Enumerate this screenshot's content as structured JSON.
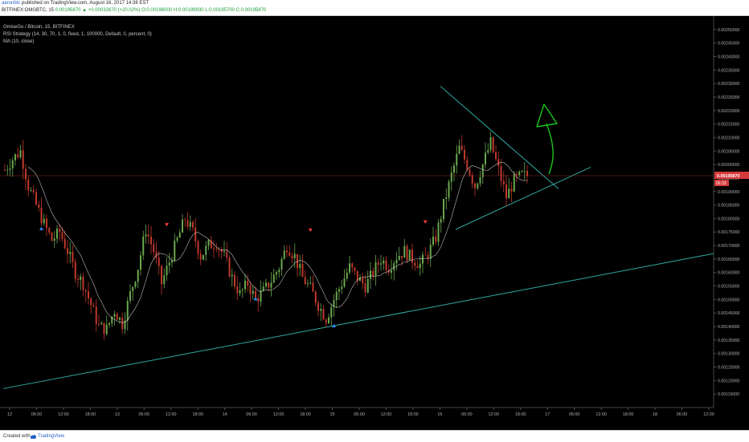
{
  "header": {
    "user": "aaronbtc",
    "published": "published on TradingView.com, August 16, 2017 14:38 EST",
    "symbol_line": "BITFINEX:OMGBTC, 15",
    "last": "0.00195870",
    "change": "+0.00032670 (+20.02%)",
    "open": "O:0.00196000",
    "high": "H:0.00199930",
    "low": "L:0.00195700",
    "close": "C:0.00195870"
  },
  "legend": {
    "title": "OmiseGo / Bitcoin, 15, BITFINEX",
    "rsi": "RSI Strategy (14, 30, 70, 1, 0, fixed, 1, 100000, Default, 0, percent, 0)",
    "ma": "MA (10, close)"
  },
  "footer": {
    "created_with": "Created with",
    "brand": "TradingView"
  },
  "colors": {
    "background": "#000000",
    "up": "#6aa84f",
    "down": "#c0392b",
    "ma": "#e8e8e8",
    "trendline": "#2fa8a0",
    "annotation": "#19c419",
    "price_line": "#c0392b",
    "price_label_bg": "#d63a3a",
    "signal_buy": "#2a8cff",
    "signal_sell": "#ff3b3b"
  },
  "chart_data": {
    "type": "candlestick",
    "y_axis": {
      "ticks": [
        "0.00250000",
        "0.00245000",
        "0.00240000",
        "0.00235000",
        "0.00230000",
        "0.00225000",
        "0.00220000",
        "0.00215000",
        "0.00210000",
        "0.00205000",
        "0.00200000",
        "0.00195000",
        "0.00190000",
        "0.00185000",
        "0.00180000",
        "0.00175000",
        "0.00170000",
        "0.00165000",
        "0.00160000",
        "0.00155000",
        "0.00150000",
        "0.00145000",
        "0.00140000",
        "0.00135000",
        "0.00130000",
        "0.00125000",
        "0.00120000",
        "0.00115000"
      ],
      "ylim": [
        0.0011,
        0.00255
      ]
    },
    "x_axis": {
      "ticks": [
        "12",
        "06:00",
        "12:00",
        "18:00",
        "13",
        "06:00",
        "12:00",
        "18:00",
        "14",
        "06:00",
        "12:00",
        "18:00",
        "15",
        "06:00",
        "12:00",
        "18:00",
        "16",
        "06:00",
        "12:00",
        "18:00",
        "17",
        "06:00",
        "12:00",
        "18:00",
        "18",
        "06:00",
        "12:00"
      ]
    },
    "last_price": 0.0019587,
    "last_price_label": "0.00195870",
    "sub_label": "06:33",
    "price_path_points": [
      [
        0,
        0.00198
      ],
      [
        3,
        0.00202
      ],
      [
        6,
        0.00205
      ],
      [
        9,
        0.00192
      ],
      [
        12,
        0.00185
      ],
      [
        15,
        0.00178
      ],
      [
        18,
        0.00172
      ],
      [
        21,
        0.00175
      ],
      [
        24,
        0.00168
      ],
      [
        27,
        0.0016
      ],
      [
        30,
        0.00156
      ],
      [
        33,
        0.00148
      ],
      [
        36,
        0.0014
      ],
      [
        39,
        0.00139
      ],
      [
        42,
        0.00146
      ],
      [
        45,
        0.00141
      ],
      [
        48,
        0.00152
      ],
      [
        51,
        0.00162
      ],
      [
        54,
        0.00176
      ],
      [
        57,
        0.00168
      ],
      [
        60,
        0.00156
      ],
      [
        63,
        0.00164
      ],
      [
        66,
        0.00172
      ],
      [
        69,
        0.0018
      ],
      [
        72,
        0.00175
      ],
      [
        75,
        0.00166
      ],
      [
        78,
        0.0017
      ],
      [
        81,
        0.00171
      ],
      [
        84,
        0.00166
      ],
      [
        87,
        0.00158
      ],
      [
        90,
        0.00152
      ],
      [
        93,
        0.00156
      ],
      [
        96,
        0.0015
      ],
      [
        99,
        0.00153
      ],
      [
        102,
        0.00157
      ],
      [
        105,
        0.00162
      ],
      [
        108,
        0.0017
      ],
      [
        111,
        0.00166
      ],
      [
        114,
        0.00158
      ],
      [
        117,
        0.00154
      ],
      [
        120,
        0.00148
      ],
      [
        123,
        0.00143
      ],
      [
        126,
        0.0015
      ],
      [
        129,
        0.00156
      ],
      [
        132,
        0.00162
      ],
      [
        135,
        0.00158
      ],
      [
        138,
        0.00155
      ],
      [
        141,
        0.0016
      ],
      [
        144,
        0.00165
      ],
      [
        147,
        0.00162
      ],
      [
        150,
        0.00166
      ],
      [
        153,
        0.00168
      ],
      [
        156,
        0.00165
      ],
      [
        159,
        0.00163
      ],
      [
        162,
        0.00167
      ],
      [
        165,
        0.00173
      ],
      [
        168,
        0.00185
      ],
      [
        171,
        0.00196
      ],
      [
        174,
        0.00206
      ],
      [
        177,
        0.002
      ],
      [
        180,
        0.00192
      ],
      [
        183,
        0.002
      ],
      [
        186,
        0.00208
      ],
      [
        189,
        0.00198
      ],
      [
        192,
        0.00188
      ],
      [
        195,
        0.00194
      ],
      [
        198,
        0.00196
      ],
      [
        200,
        0.0019587
      ]
    ],
    "signals": [
      {
        "type": "buy",
        "x": 14,
        "y": 0.00176
      },
      {
        "type": "sell",
        "x": 62,
        "y": 0.00178
      },
      {
        "type": "buy",
        "x": 96,
        "y": 0.0015
      },
      {
        "type": "sell",
        "x": 117,
        "y": 0.00176
      },
      {
        "type": "buy",
        "x": 126,
        "y": 0.0014
      },
      {
        "type": "sell",
        "x": 161,
        "y": 0.00179
      }
    ]
  }
}
